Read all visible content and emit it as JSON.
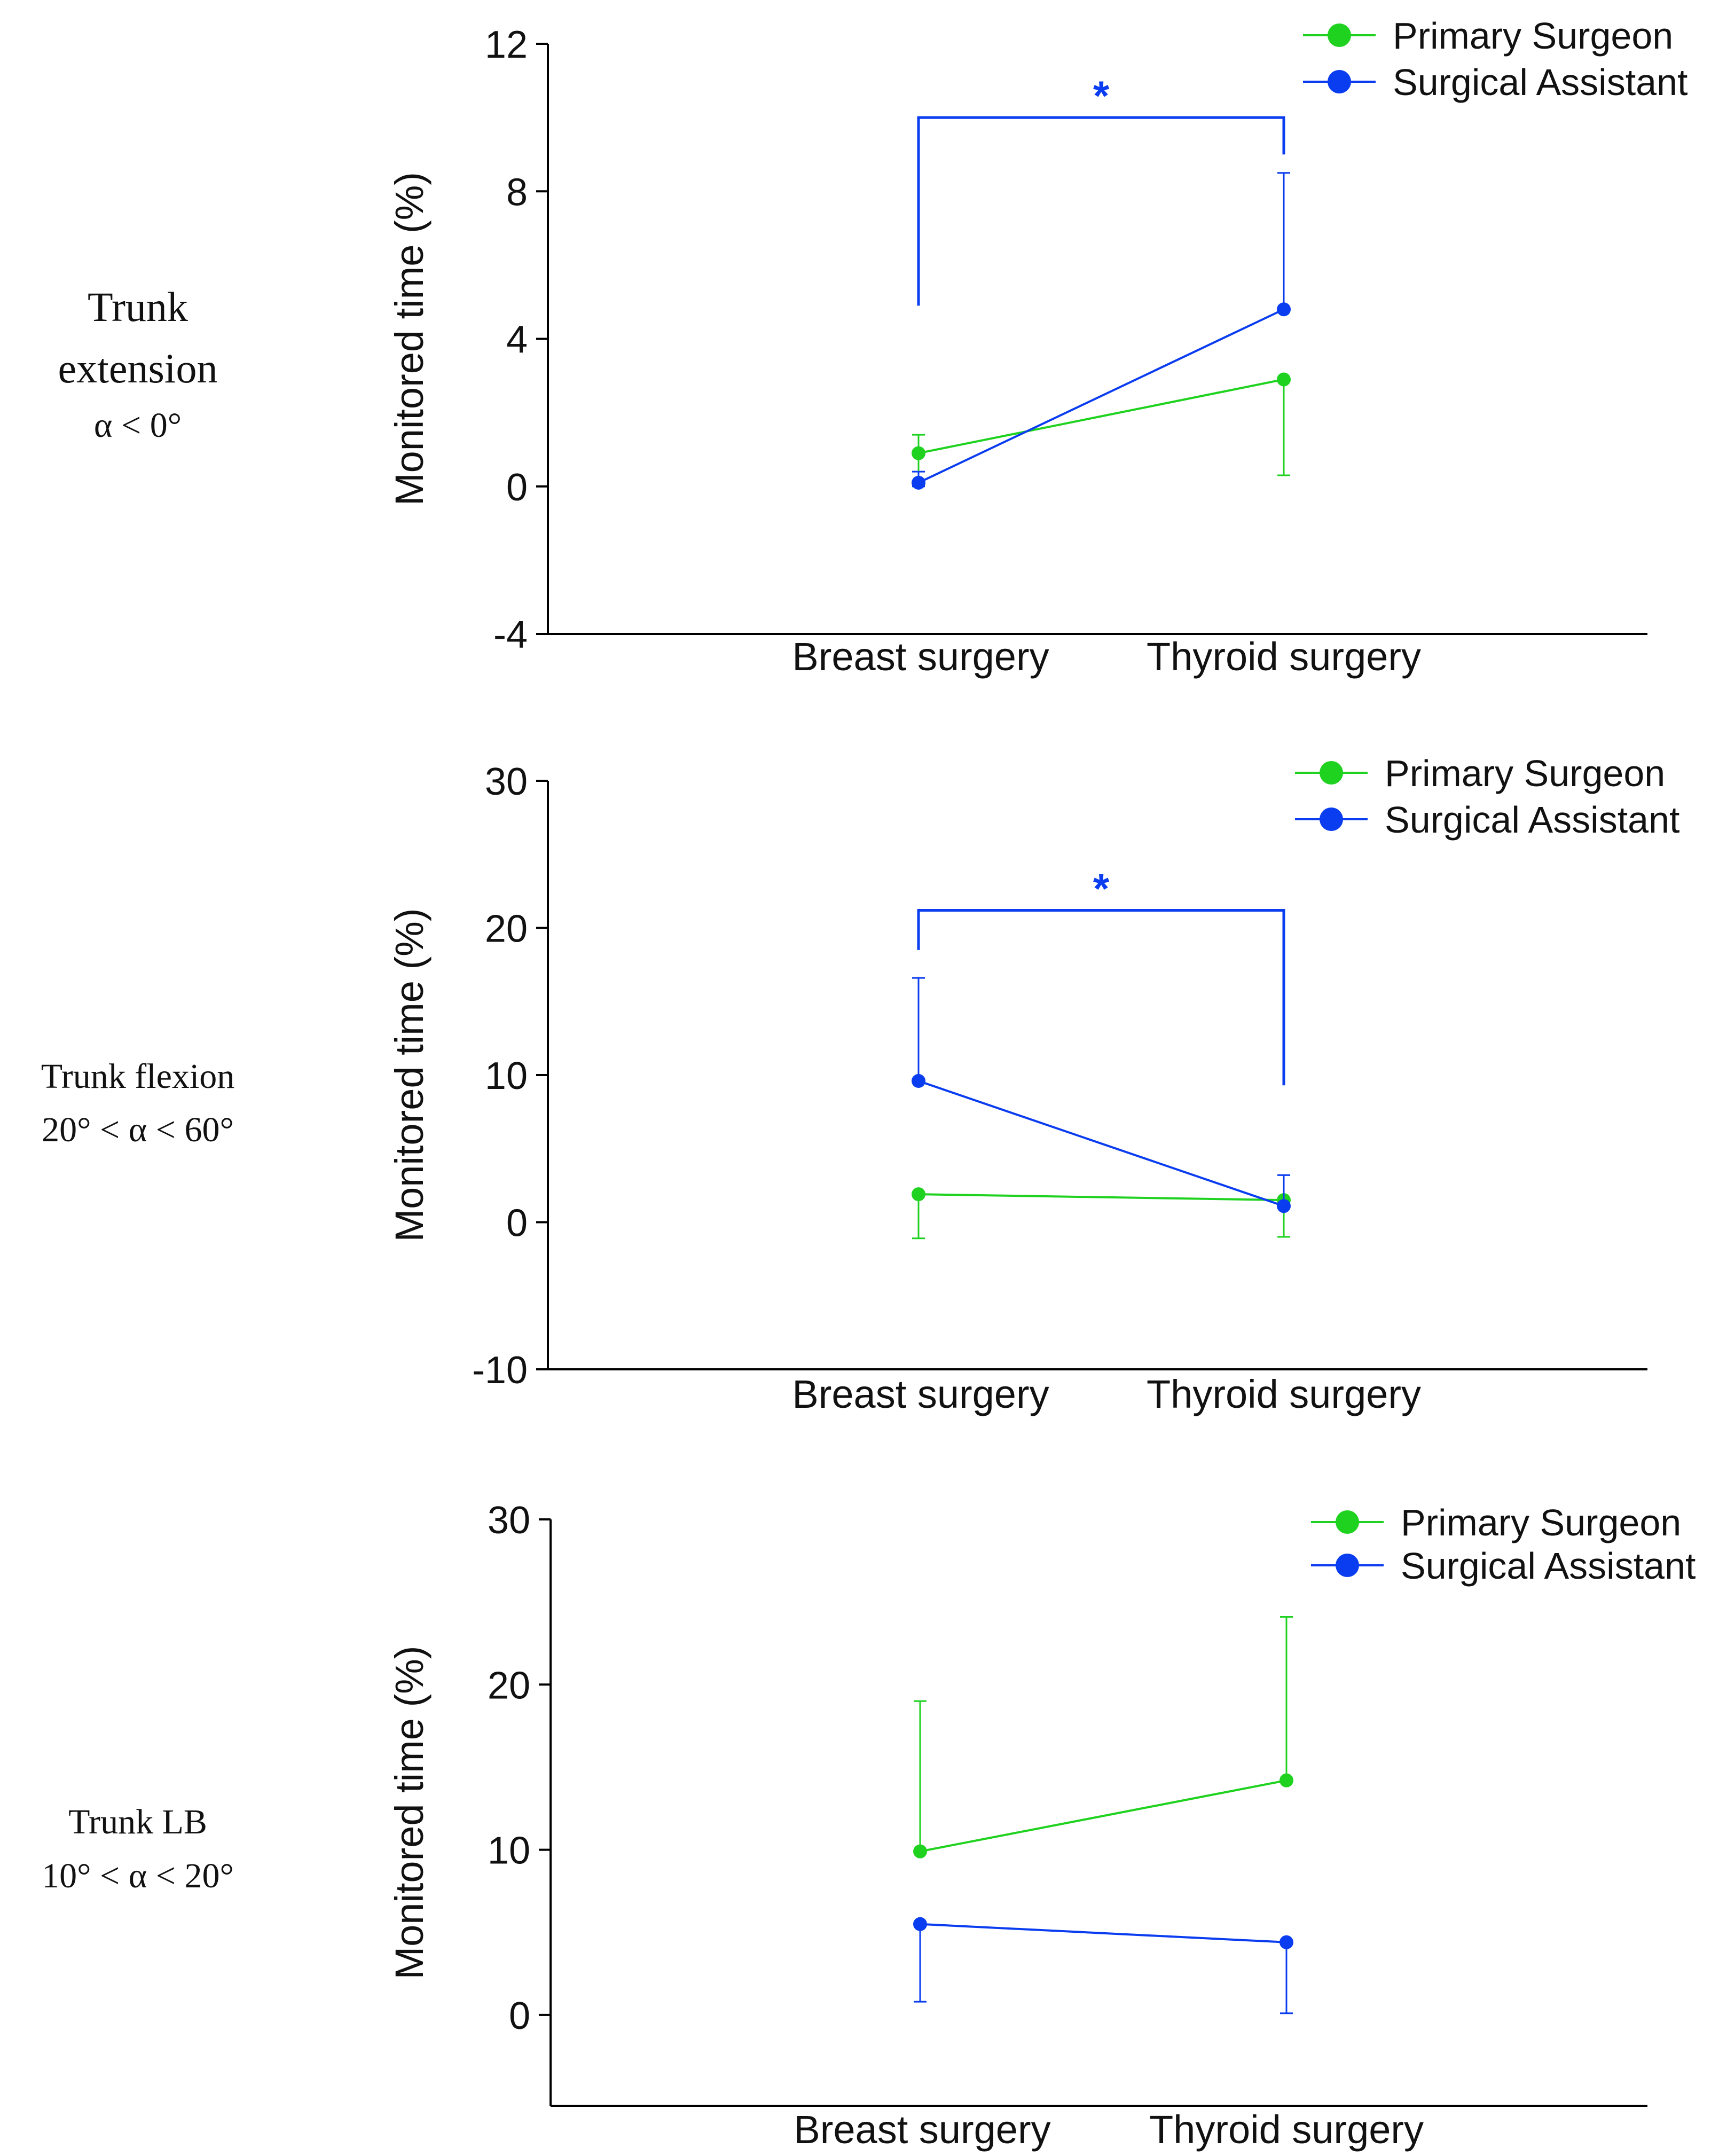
{
  "colors": {
    "primary": "#1fd21f",
    "assistant": "#0a3cf0",
    "axis": "#000000"
  },
  "panels": [
    {
      "side_label": [
        "Trunk",
        "extension",
        "α < 0°"
      ],
      "chart_data": {
        "type": "line",
        "title": "",
        "ylabel": "Monitored time (%)",
        "xlabel": "",
        "categories": [
          "Breast surgery",
          "Thyroid surgery"
        ],
        "ylim": [
          -4,
          12
        ],
        "yticks": [
          "-4",
          "0",
          "4",
          "8",
          "12"
        ],
        "series": [
          {
            "name": "Primary Surgeon",
            "color": "#1fd21f",
            "values": [
              0.9,
              2.9
            ],
            "err_low": [
              0.9,
              2.6
            ],
            "err_high": [
              0.5,
              0
            ]
          },
          {
            "name": "Surgical Assistant",
            "color": "#0a3cf0",
            "values": [
              0.1,
              4.8
            ],
            "err_low": [
              0.1,
              0
            ],
            "err_high": [
              0.3,
              3.7
            ]
          }
        ],
        "legend": "top-right",
        "significance": {
          "label": "*",
          "series": "Surgical Assistant",
          "bracket_y": 10.0,
          "left_leg_bottom": 4.9,
          "right_leg_bottom": 9.0
        }
      }
    },
    {
      "side_label": [
        "Trunk flexion",
        "20° < α < 60°"
      ],
      "chart_data": {
        "type": "line",
        "title": "",
        "ylabel": "Monitored time (%)",
        "xlabel": "",
        "categories": [
          "Breast surgery",
          "Thyroid surgery"
        ],
        "ylim": [
          -10,
          30
        ],
        "yticks": [
          "-10",
          "0",
          "10",
          "20",
          "30"
        ],
        "series": [
          {
            "name": "Primary Surgeon",
            "color": "#1fd21f",
            "values": [
              1.9,
              1.5
            ],
            "err_low": [
              3.0,
              2.5
            ],
            "err_high": [
              0,
              0
            ]
          },
          {
            "name": "Surgical Assistant",
            "color": "#0a3cf0",
            "values": [
              9.6,
              1.1
            ],
            "err_low": [
              0,
              0
            ],
            "err_high": [
              7.0,
              2.1
            ]
          }
        ],
        "legend": "top-right",
        "significance": {
          "label": "*",
          "series": "Surgical Assistant",
          "bracket_y": 21.2,
          "left_leg_bottom": 18.5,
          "right_leg_bottom": 9.3
        }
      }
    },
    {
      "side_label": [
        "Trunk LB",
        "10° < α < 20°"
      ],
      "chart_data": {
        "type": "line",
        "title": "",
        "ylabel": "Monitored time (%)",
        "xlabel": "",
        "categories": [
          "Breast surgery",
          "Thyroid surgery"
        ],
        "ylim": [
          -5.5,
          30
        ],
        "yticks": [
          "0",
          "10",
          "20",
          "30"
        ],
        "series": [
          {
            "name": "Primary Surgeon",
            "color": "#1fd21f",
            "values": [
              9.9,
              14.2
            ],
            "err_low": [
              0,
              0
            ],
            "err_high": [
              9.1,
              9.9
            ]
          },
          {
            "name": "Surgical Assistant",
            "color": "#0a3cf0",
            "values": [
              5.5,
              4.4
            ],
            "err_low": [
              4.7,
              4.3
            ],
            "err_high": [
              0,
              0
            ]
          }
        ],
        "legend": "top-right"
      }
    }
  ]
}
